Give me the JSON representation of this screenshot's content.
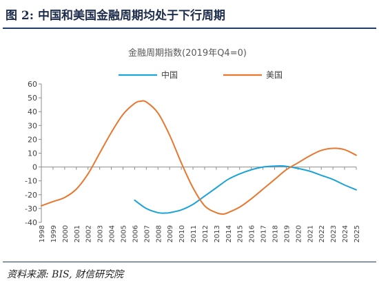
{
  "figure": {
    "title": "图 2:  中国和美国金融周期均处于下行周期",
    "source": "资料来源: BIS, 财信研究院"
  },
  "chart_data": {
    "type": "line",
    "title": "金融周期指数(2019年Q4=0)",
    "xlabel": "",
    "ylabel": "",
    "ylim": [
      -40,
      60
    ],
    "yticks": [
      "60",
      "50",
      "40",
      "30",
      "20",
      "10",
      "0",
      "-10",
      "-20",
      "-30",
      "-40"
    ],
    "xlim": [
      1998,
      2025
    ],
    "xticks": [
      "1998",
      "1999",
      "2000",
      "2001",
      "2002",
      "2003",
      "2004",
      "2005",
      "2006",
      "2007",
      "2008",
      "2009",
      "2010",
      "2011",
      "2012",
      "2013",
      "2014",
      "2015",
      "2016",
      "2017",
      "2018",
      "2019",
      "2020",
      "2021",
      "2022",
      "2023",
      "2024",
      "2025"
    ],
    "grid": false,
    "legend": "top",
    "series": [
      {
        "name": "中国",
        "color": "#1aa3d9",
        "x": [
          2006,
          2007,
          2008,
          2008.6,
          2009,
          2010,
          2011,
          2012,
          2013,
          2014,
          2015,
          2016,
          2017,
          2018,
          2018.5,
          2019,
          2020,
          2021,
          2022,
          2023,
          2024,
          2025
        ],
        "y": [
          -24,
          -30,
          -33,
          -33.3,
          -33,
          -31,
          -27,
          -21,
          -15,
          -9,
          -5,
          -2,
          0,
          0.7,
          0.8,
          0.5,
          -1,
          -3,
          -6,
          -9,
          -13,
          -16.5
        ]
      },
      {
        "name": "美国",
        "color": "#e8762d",
        "x": [
          1998,
          1999,
          2000,
          2001,
          2002,
          2003,
          2004,
          2005,
          2006,
          2006.5,
          2007,
          2008,
          2009,
          2010,
          2011,
          2012,
          2013,
          2013.6,
          2014,
          2015,
          2016,
          2017,
          2018,
          2019,
          2020,
          2021,
          2022,
          2023,
          2024,
          2025
        ],
        "y": [
          -28,
          -25,
          -22,
          -16,
          -5,
          10,
          25,
          38,
          46,
          47.5,
          47,
          39,
          23,
          3,
          -15,
          -28,
          -33,
          -34,
          -33,
          -29,
          -23,
          -16,
          -9,
          -2,
          3,
          8,
          12,
          13.5,
          12.5,
          8.5
        ]
      }
    ]
  }
}
